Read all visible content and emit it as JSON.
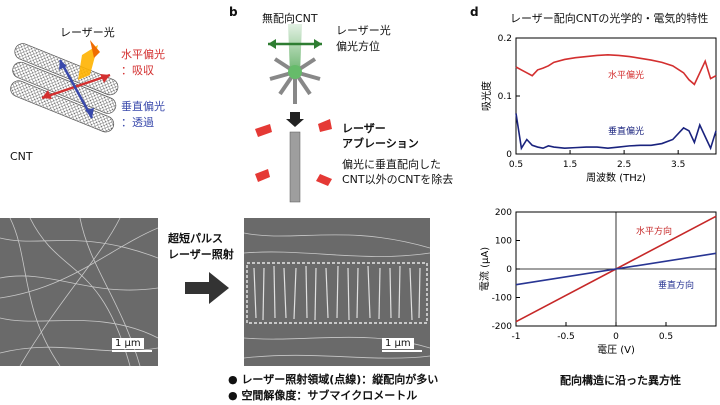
{
  "panel_a": {
    "laser": "レーザー光",
    "horizontal": "水平偏光",
    "absorb": "：吸収",
    "vertical": "垂直偏光",
    "transmit": "：透過",
    "cnt": "CNT",
    "colors": {
      "horizontal": "#d32f2f",
      "vertical": "#3949ab"
    }
  },
  "panel_b": {
    "letter": "b",
    "unaligned": "無配向CNT",
    "laser": "レーザー光",
    "pol_dir": "偏光方位",
    "ablation_1": "レーザー",
    "ablation_2": "アブレーション",
    "remove_1": "偏光に垂直配向した",
    "remove_2": "CNT以外のCNTを除去"
  },
  "sem": {
    "pulse_1": "超短パルス",
    "pulse_2": "レーザー照射",
    "scale_left": "1 μm",
    "scale_right": "1 μm",
    "bullet_1": "レーザー照射領域(点線)：縦配向が多い",
    "bullet_2": "空間解像度：サブマイクロメートル"
  },
  "panel_d": {
    "letter": "d",
    "title": "レーザー配向CNTの光学的・電気的特性"
  },
  "chart_data": [
    {
      "type": "line",
      "xlabel": "周波数 (THz)",
      "ylabel": "吸光度",
      "xlim": [
        0.5,
        4.2
      ],
      "ylim": [
        0,
        0.2
      ],
      "x_ticks": [
        "0.5",
        "1.5",
        "2.5",
        "3.5"
      ],
      "y_ticks": [
        "0",
        "0.1",
        "0.2"
      ],
      "x": [
        0.5,
        0.6,
        0.7,
        0.8,
        0.9,
        1.0,
        1.1,
        1.2,
        1.4,
        1.6,
        1.8,
        2.0,
        2.2,
        2.4,
        2.6,
        2.8,
        3.0,
        3.2,
        3.4,
        3.6,
        3.7,
        3.8,
        3.9,
        4.0,
        4.1,
        4.2
      ],
      "series": [
        {
          "name": "水平偏光",
          "color": "#d32f2f",
          "values": [
            0.15,
            0.145,
            0.14,
            0.135,
            0.145,
            0.148,
            0.152,
            0.158,
            0.163,
            0.166,
            0.168,
            0.17,
            0.171,
            0.17,
            0.168,
            0.165,
            0.162,
            0.158,
            0.152,
            0.14,
            0.128,
            0.12,
            0.14,
            0.16,
            0.13,
            0.135
          ]
        },
        {
          "name": "垂直偏光",
          "color": "#1a237e",
          "values": [
            0.07,
            0.01,
            0.025,
            0.015,
            0.012,
            0.01,
            0.014,
            0.012,
            0.01,
            0.011,
            0.012,
            0.012,
            0.01,
            0.012,
            0.014,
            0.015,
            0.015,
            0.018,
            0.025,
            0.045,
            0.04,
            0.02,
            0.05,
            0.03,
            0.01,
            0.04
          ]
        }
      ]
    },
    {
      "type": "line",
      "xlabel": "電圧 (V)",
      "ylabel": "電流 (μA)",
      "xlim": [
        -1,
        1
      ],
      "ylim": [
        -200,
        200
      ],
      "x_ticks": [
        "-1",
        "-0.5",
        "0",
        "0.5"
      ],
      "y_ticks": [
        "200",
        "100",
        "0",
        "-100",
        "-200"
      ],
      "x": [
        -1,
        1
      ],
      "series": [
        {
          "name": "水平方向",
          "color": "#c62828",
          "values": [
            -185,
            185
          ]
        },
        {
          "name": "垂直方向",
          "color": "#283593",
          "values": [
            -55,
            55
          ]
        }
      ],
      "caption": "配向構造に沿った異方性"
    }
  ]
}
